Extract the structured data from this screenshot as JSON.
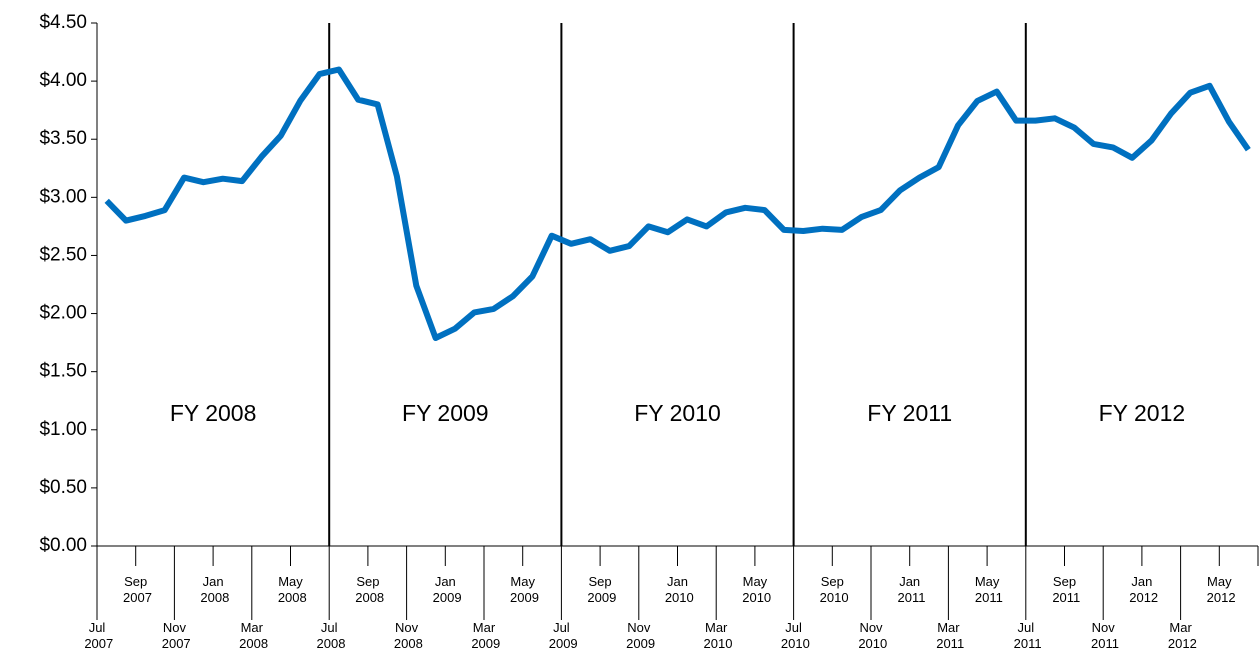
{
  "chart_data": {
    "type": "line",
    "categories": [
      "Jul 2007",
      null,
      "Sep 2007",
      null,
      "Nov 2007",
      null,
      "Jan 2008",
      null,
      "Mar 2008",
      null,
      "May 2008",
      null,
      "Jul 2008",
      null,
      "Sep 2008",
      null,
      "Nov 2008",
      null,
      "Jan 2009",
      null,
      "Mar 2009",
      null,
      "May 2009",
      null,
      "Jul 2009",
      null,
      "Sep 2009",
      null,
      "Nov 2009",
      null,
      "Jan 2010",
      null,
      "Mar 2010",
      null,
      "May 2010",
      null,
      "Jul 2010",
      null,
      "Sep 2010",
      null,
      "Nov 2010",
      null,
      "Jan 2011",
      null,
      "Mar 2011",
      null,
      "May 2011",
      null,
      "Jul 2011",
      null,
      "Sep 2011",
      null,
      "Nov 2011",
      null,
      "Jan 2012",
      null,
      "Mar 2012",
      null,
      "May 2012",
      null
    ],
    "series": [
      {
        "color": "#0070c0",
        "values": [
          2.97,
          2.8,
          2.84,
          2.89,
          3.17,
          3.13,
          3.16,
          3.14,
          3.35,
          3.53,
          3.83,
          4.06,
          4.1,
          3.84,
          3.8,
          3.18,
          2.24,
          1.79,
          1.87,
          2.01,
          2.04,
          2.15,
          2.32,
          2.67,
          2.6,
          2.64,
          2.54,
          2.58,
          2.75,
          2.7,
          2.81,
          2.75,
          2.87,
          2.91,
          2.89,
          2.72,
          2.71,
          2.73,
          2.72,
          2.83,
          2.89,
          3.06,
          3.17,
          3.26,
          3.62,
          3.83,
          3.91,
          3.66,
          3.66,
          3.68,
          3.6,
          3.46,
          3.43,
          3.34,
          3.49,
          3.72,
          3.9,
          3.96,
          3.65,
          3.41
        ]
      }
    ],
    "ylim": [
      0,
      4.5
    ],
    "yticks": [
      {
        "value": 0,
        "label": "$0.00"
      },
      {
        "value": 0.5,
        "label": "$0.50"
      },
      {
        "value": 1,
        "label": "$1.00"
      },
      {
        "value": 1.5,
        "label": "$1.50"
      },
      {
        "value": 2,
        "label": "$2.00"
      },
      {
        "value": 2.5,
        "label": "$2.50"
      },
      {
        "value": 3,
        "label": "$3.00"
      },
      {
        "value": 3.5,
        "label": "$3.50"
      },
      {
        "value": 4,
        "label": "$4.00"
      },
      {
        "value": 4.5,
        "label": "$4.50"
      }
    ],
    "annotations": [
      "FY 2008",
      "FY 2009",
      "FY 2010",
      "FY 2011",
      "FY 2012"
    ]
  }
}
